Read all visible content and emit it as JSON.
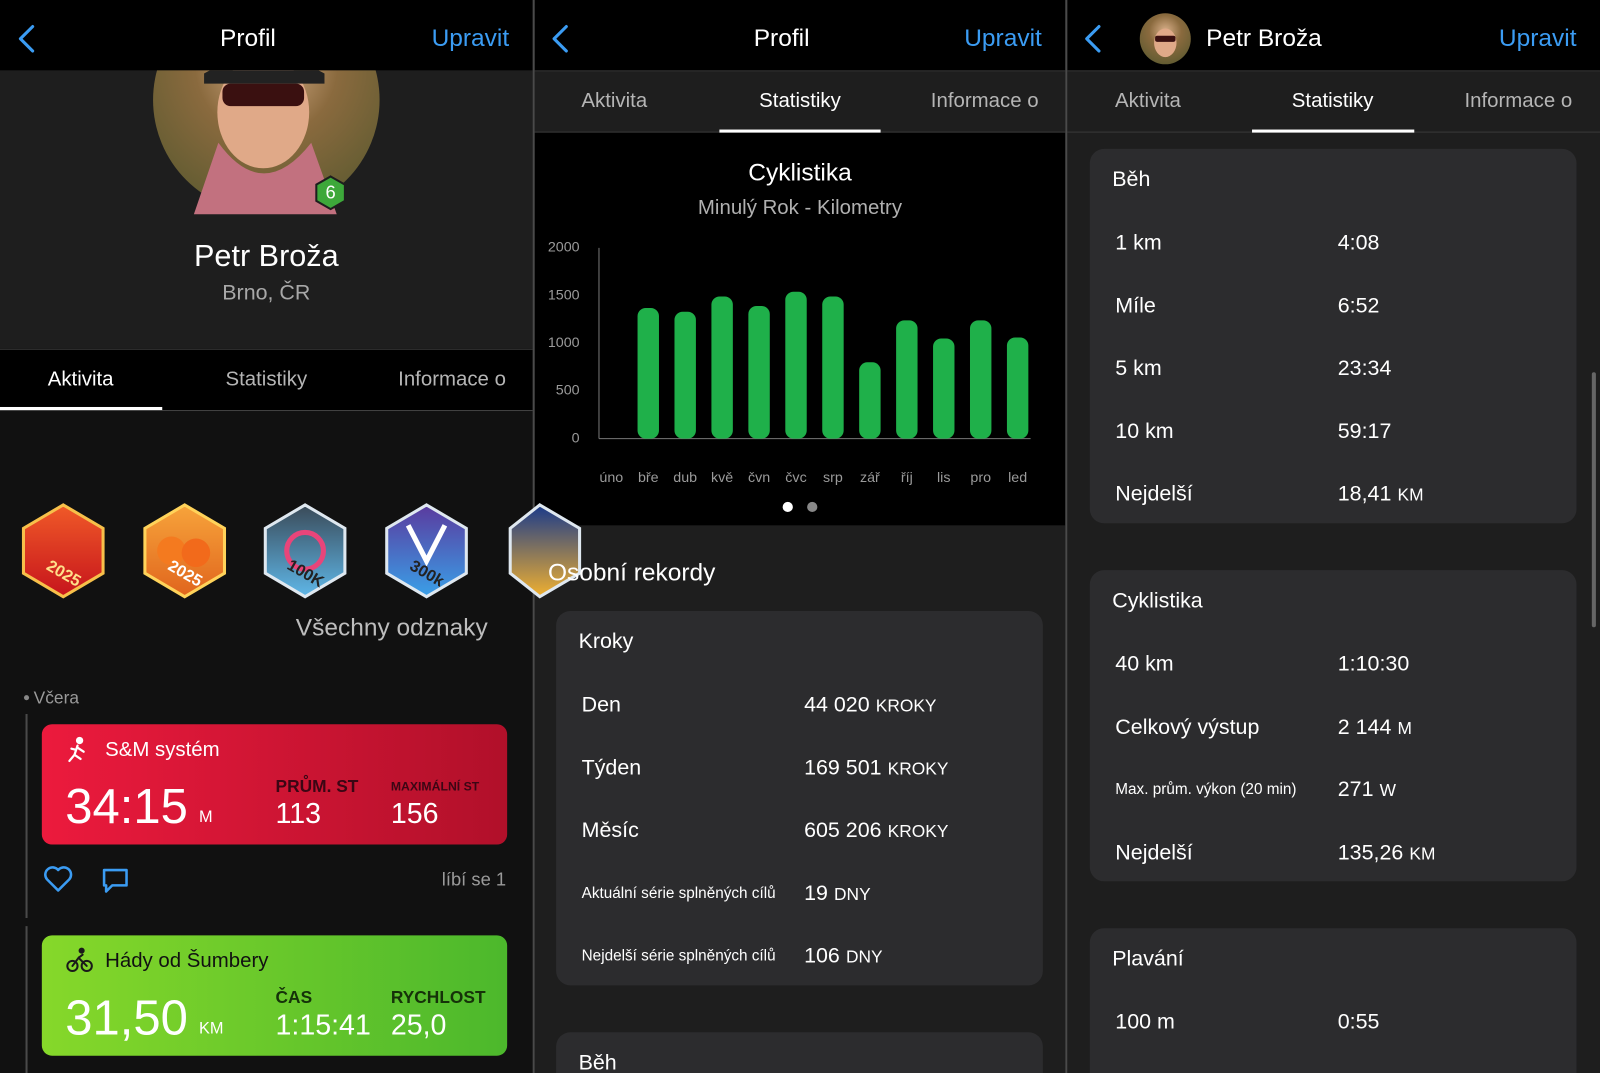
{
  "panels": [
    {
      "header": {
        "title": "Profil",
        "action": "Upravit"
      },
      "profile": {
        "name": "Petr Broža",
        "location": "Brno, ČR",
        "level": "6"
      },
      "tabs": [
        "Aktivita",
        "Statistiky",
        "Informace o"
      ],
      "badges": [
        "2025",
        "2025",
        "100K",
        "300k"
      ],
      "all_badges": "Všechny odznaky",
      "feed": {
        "day": "Včera",
        "activities": [
          {
            "title": "S&M systém",
            "value": "34:15",
            "unit": "M",
            "stats": [
              {
                "label": "PRŮM. ST",
                "value": "113"
              },
              {
                "label": "MAXIMÁLNÍ ST",
                "value": "156"
              }
            ],
            "likes": "líbí se 1"
          },
          {
            "title": "Hády od Šumbery",
            "value": "31,50",
            "unit": "KM",
            "stats": [
              {
                "label": "ČAS",
                "value": "1:15:41"
              },
              {
                "label": "RYCHLOST",
                "value": "25,0"
              }
            ]
          }
        ]
      }
    },
    {
      "header": {
        "title": "Profil",
        "action": "Upravit"
      },
      "tabs": [
        "Aktivita",
        "Statistiky",
        "Informace o"
      ],
      "records_title": "Osobní rekordy",
      "cards": [
        {
          "title": "Kroky",
          "rows": [
            {
              "label": "Den",
              "value": "44 020",
              "unit": "KROKY"
            },
            {
              "label": "Týden",
              "value": "169 501",
              "unit": "KROKY"
            },
            {
              "label": "Měsíc",
              "value": "605 206",
              "unit": "KROKY"
            },
            {
              "label": "Aktuální série splněných cílů",
              "value": "19",
              "unit": "DNY"
            },
            {
              "label": "Nejdelší série splněných cílů",
              "value": "106",
              "unit": "DNY"
            }
          ]
        },
        {
          "title": "Běh"
        }
      ]
    },
    {
      "header": {
        "name": "Petr Broža",
        "action": "Upravit"
      },
      "tabs": [
        "Aktivita",
        "Statistiky",
        "Informace o"
      ],
      "cards": [
        {
          "title": "Běh",
          "rows": [
            {
              "label": "1 km",
              "value": "4:08"
            },
            {
              "label": "Míle",
              "value": "6:52"
            },
            {
              "label": "5 km",
              "value": "23:34"
            },
            {
              "label": "10 km",
              "value": "59:17"
            },
            {
              "label": "Nejdelší",
              "value": "18,41",
              "unit": "KM"
            }
          ]
        },
        {
          "title": "Cyklistika",
          "rows": [
            {
              "label": "40 km",
              "value": "1:10:30"
            },
            {
              "label": "Celkový výstup",
              "value": "2 144",
              "unit": "M"
            },
            {
              "label": "Max. prům. výkon (20 min)",
              "value": "271",
              "unit": "W"
            },
            {
              "label": "Nejdelší",
              "value": "135,26",
              "unit": "KM"
            }
          ]
        },
        {
          "title": "Plavání",
          "rows": [
            {
              "label": "100 m",
              "value": "0:55"
            }
          ]
        }
      ]
    }
  ],
  "chart_data": {
    "type": "bar",
    "title": "Cyklistika",
    "subtitle": "Minulý Rok - Kilometry",
    "categories": [
      "úno",
      "bře",
      "dub",
      "kvě",
      "čvn",
      "čvc",
      "srp",
      "zář",
      "říj",
      "lis",
      "pro",
      "led"
    ],
    "values": [
      0,
      1370,
      1330,
      1490,
      1390,
      1540,
      1490,
      800,
      1240,
      1050,
      1240,
      1060
    ],
    "color": "#1fb04a",
    "ylim": [
      0,
      2000
    ],
    "yticks": [
      0,
      500,
      1000,
      1500,
      2000
    ]
  }
}
